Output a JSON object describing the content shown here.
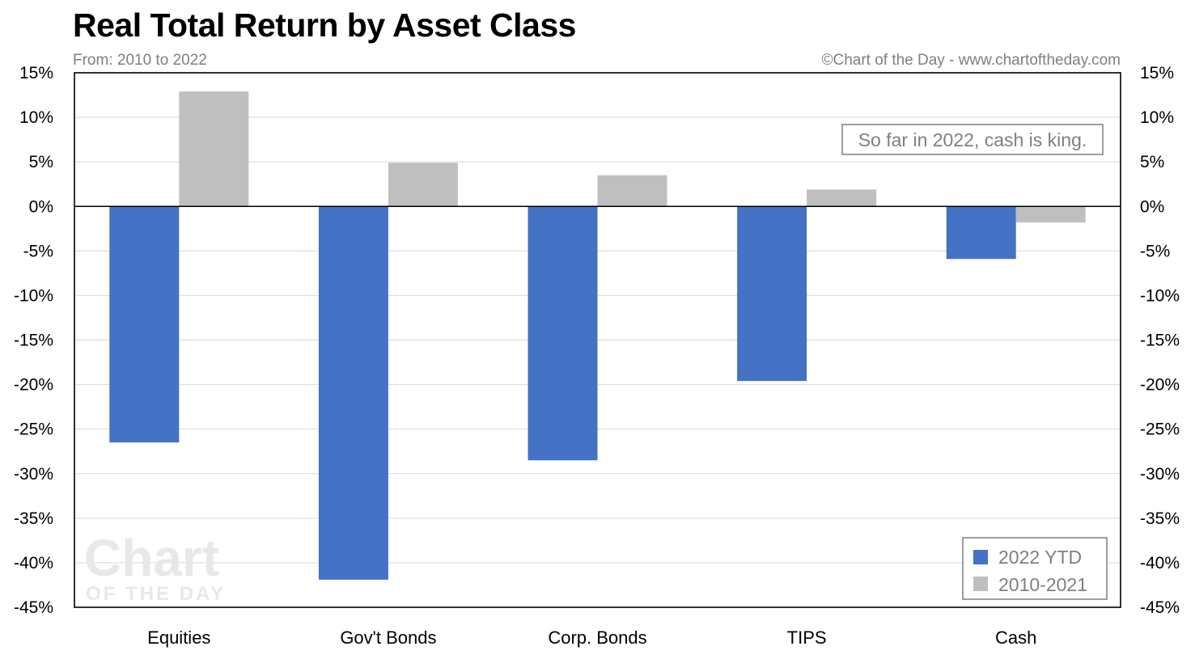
{
  "chart_data": {
    "type": "bar",
    "title": "Real Total Return by Asset Class",
    "subtitle": "From: 2010 to 2022",
    "credit": "©Chart of the Day - www.chartoftheday.com",
    "categories": [
      "Equities",
      "Gov't Bonds",
      "Corp. Bonds",
      "TIPS",
      "Cash"
    ],
    "series": [
      {
        "name": "2022 YTD",
        "color": "#4472c4",
        "values": [
          -26.5,
          -41.9,
          -28.5,
          -19.6,
          -5.9
        ]
      },
      {
        "name": "2010-2021",
        "color": "#bfbfbf",
        "values": [
          12.9,
          4.9,
          3.5,
          1.9,
          -1.8
        ]
      }
    ],
    "ylim": [
      -45,
      15
    ],
    "yticks": [
      15,
      10,
      5,
      0,
      -5,
      -10,
      -15,
      -20,
      -25,
      -30,
      -35,
      -40,
      -45
    ],
    "ytick_labels": [
      "15%",
      "10%",
      "5%",
      "0%",
      "-5%",
      "-10%",
      "-15%",
      "-20%",
      "-25%",
      "-30%",
      "-35%",
      "-40%",
      "-45%"
    ],
    "secondary_axis": true,
    "grid": true,
    "legend_position": "bottom-right",
    "annotation": "So far in 2022, cash is king.",
    "watermark": {
      "line1": "Chart",
      "line2": "OF THE DAY"
    }
  }
}
